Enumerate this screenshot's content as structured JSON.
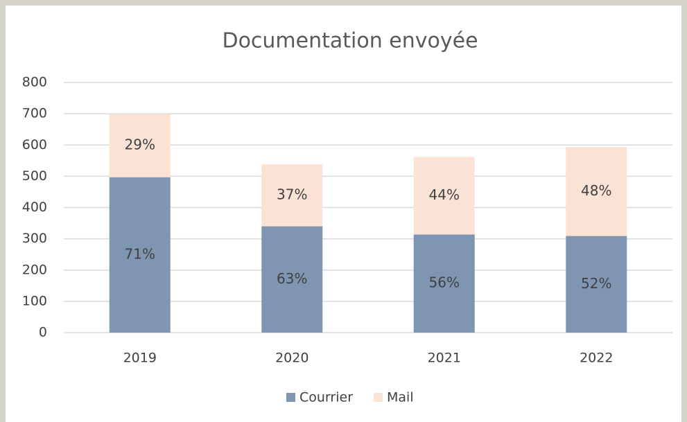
{
  "chart_data": {
    "type": "stacked_bar",
    "title": "Documentation envoyée",
    "categories": [
      "2019",
      "2020",
      "2021",
      "2022"
    ],
    "series": [
      {
        "name": "Courrier",
        "color": "#7f96b2",
        "values": [
          497,
          340,
          314,
          309
        ],
        "labels": [
          "71%",
          "63%",
          "56%",
          "52%"
        ]
      },
      {
        "name": "Mail",
        "color": "#fae3d4",
        "values": [
          203,
          198,
          248,
          285
        ],
        "labels": [
          "29%",
          "37%",
          "44%",
          "48%"
        ]
      }
    ],
    "ylim": [
      0,
      800
    ],
    "yticks": [
      0,
      100,
      200,
      300,
      400,
      500,
      600,
      700,
      800
    ],
    "grid": true,
    "legend": "bottom"
  }
}
